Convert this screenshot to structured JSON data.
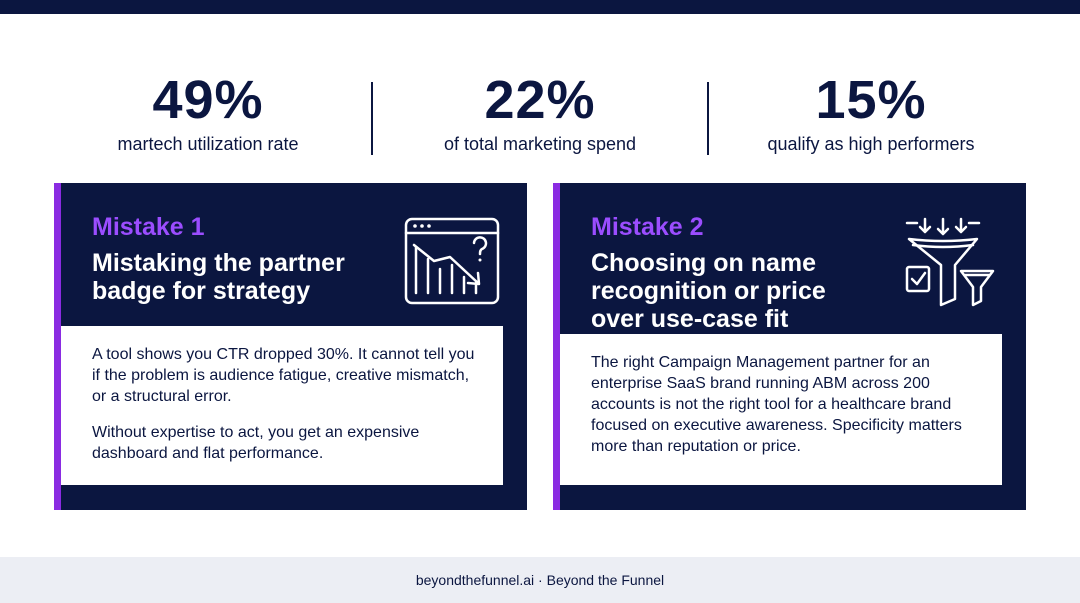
{
  "stats": [
    {
      "value": "49%",
      "label": "martech utilization rate"
    },
    {
      "value": "22%",
      "label": "of total marketing spend"
    },
    {
      "value": "15%",
      "label": "qualify as high performers"
    }
  ],
  "cards": [
    {
      "kicker": "Mistake 1",
      "title": "Mistaking the partner badge for strategy",
      "icon": "chart-decline-question-icon",
      "paragraphs": [
        "A tool shows you CTR dropped 30%. It cannot tell you if the problem is audience fatigue, creative mismatch, or a structural error.",
        "Without expertise to act, you get an expensive dashboard and flat performance."
      ]
    },
    {
      "kicker": "Mistake 2",
      "title": "Choosing on name recognition or price over use-case fit",
      "icon": "funnel-filter-icon",
      "paragraphs": [
        "The right Campaign Management partner for an enterprise SaaS brand running ABM across 200 accounts is not the right tool for a healthcare brand focused on executive awareness. Specificity matters more than reputation or price."
      ]
    }
  ],
  "footer": {
    "text": "beyondthefunnel.ai · Beyond the Funnel"
  },
  "colors": {
    "navy": "#0b1640",
    "purple": "#8a2be2",
    "purple_text": "#9b4dff",
    "footer_bg": "#eceef4"
  }
}
